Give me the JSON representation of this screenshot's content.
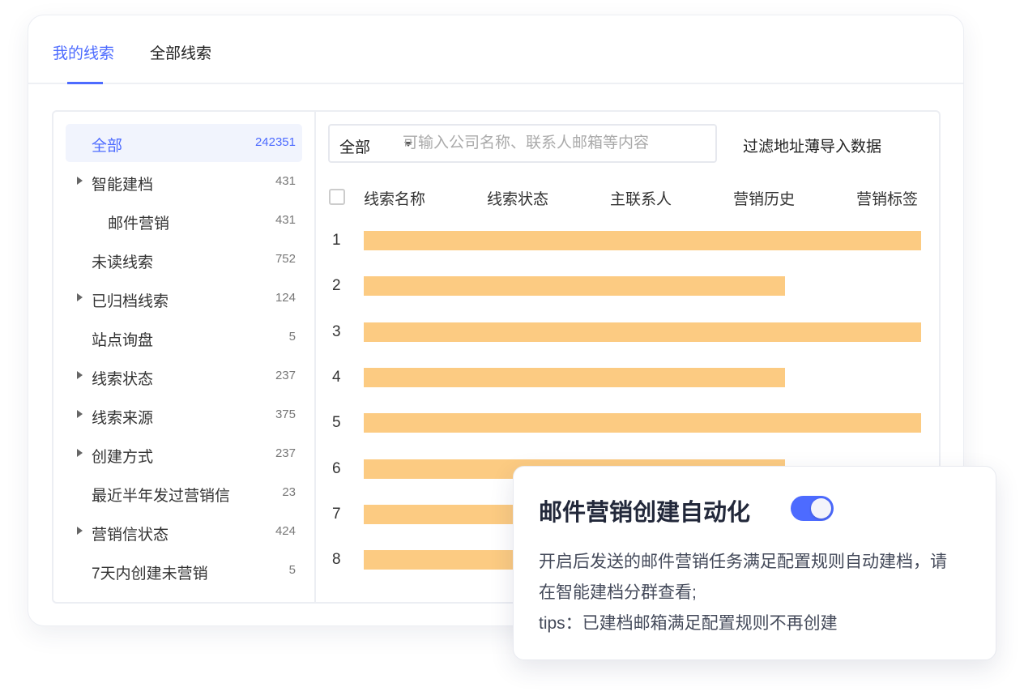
{
  "tabs": [
    {
      "label": "我的线索",
      "active": true
    },
    {
      "label": "全部线索",
      "active": false
    }
  ],
  "sidebar": {
    "items": [
      {
        "label": "全部",
        "count": "242351",
        "active": true,
        "expandable": false,
        "indent": 0
      },
      {
        "label": "智能建档",
        "count": "431",
        "expandable": true,
        "indent": 0
      },
      {
        "label": "邮件营销",
        "count": "431",
        "expandable": false,
        "indent": 1
      },
      {
        "label": "未读线索",
        "count": "752",
        "expandable": false,
        "indent": 0
      },
      {
        "label": "已归档线索",
        "count": "124",
        "expandable": true,
        "indent": 0
      },
      {
        "label": "站点询盘",
        "count": "5",
        "expandable": false,
        "indent": 0
      },
      {
        "label": "线索状态",
        "count": "237",
        "expandable": true,
        "indent": 0
      },
      {
        "label": "线索来源",
        "count": "375",
        "expandable": true,
        "indent": 0
      },
      {
        "label": "创建方式",
        "count": "237",
        "expandable": true,
        "indent": 0
      },
      {
        "label": "最近半年发过营销信",
        "count": "23",
        "expandable": false,
        "indent": 0
      },
      {
        "label": "营销信状态",
        "count": "424",
        "expandable": true,
        "indent": 0
      },
      {
        "label": "7天内创建未营销",
        "count": "5",
        "expandable": false,
        "indent": 0
      }
    ]
  },
  "search": {
    "scope": "全部",
    "placeholder": "可输入公司名称、联系人邮箱等内容",
    "value": ""
  },
  "filter_link": "过滤地址薄导入数据",
  "table": {
    "columns": [
      "线索名称",
      "线索状态",
      "主联系人",
      "营销历史",
      "营销标签"
    ],
    "rows": [
      {
        "index": "1",
        "fill": 1.0
      },
      {
        "index": "2",
        "fill": 0.756
      },
      {
        "index": "3",
        "fill": 1.0
      },
      {
        "index": "4",
        "fill": 0.756
      },
      {
        "index": "5",
        "fill": 1.0
      },
      {
        "index": "6",
        "fill": 0.756
      },
      {
        "index": "7",
        "fill": 0.756
      },
      {
        "index": "8",
        "fill": 0.756
      }
    ],
    "placeholder_color": "#fccb82"
  },
  "popup": {
    "title": "邮件营销创建自动化",
    "toggle_on": true,
    "body_line1": "开启后发送的邮件营销任务满足配置规则自动建档，请在智能建档分群查看;",
    "body_line2": "tips：已建档邮箱满足配置规则不再创建"
  },
  "colors": {
    "accent": "#4d6bff",
    "bar": "#fccb82"
  }
}
